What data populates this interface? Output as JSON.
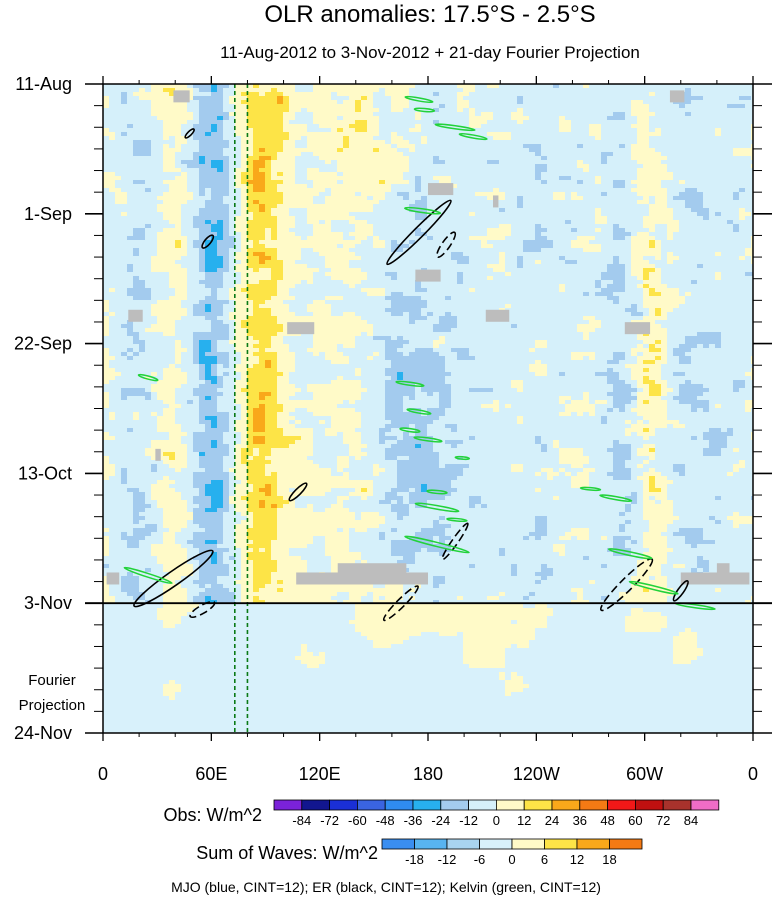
{
  "chart_data": {
    "type": "heatmap",
    "title": "OLR anomalies: 17.5°S - 2.5°S",
    "subtitle": "11-Aug-2012 to 3-Nov-2012 + 21-day Fourier Projection",
    "x_ticks": [
      {
        "label": "0",
        "lon": 0
      },
      {
        "label": "60E",
        "lon": 60
      },
      {
        "label": "120E",
        "lon": 120
      },
      {
        "label": "180",
        "lon": 180
      },
      {
        "label": "120W",
        "lon": 240
      },
      {
        "label": "60W",
        "lon": 300
      },
      {
        "label": "0",
        "lon": 360
      }
    ],
    "xlim": [
      0,
      360
    ],
    "y_ticks": [
      {
        "label": "11-Aug",
        "day": 0
      },
      {
        "label": "1-Sep",
        "day": 21
      },
      {
        "label": "22-Sep",
        "day": 42
      },
      {
        "label": "13-Oct",
        "day": 63
      },
      {
        "label": "3-Nov",
        "day": 84
      },
      {
        "label": "24-Nov",
        "day": 105
      }
    ],
    "ylim": [
      0,
      105
    ],
    "forecast_start_day": 84,
    "projection_label": [
      "Fourier",
      "Projection"
    ],
    "reference_lons": [
      73,
      80
    ],
    "obs_legend": {
      "label": "Obs: W/m^2",
      "levels": [
        -84,
        -72,
        -60,
        -48,
        -36,
        -24,
        -12,
        0,
        12,
        24,
        36,
        48,
        60,
        72,
        84
      ],
      "colors": [
        "#7b22d9",
        "#12168f",
        "#1a2fd6",
        "#3a64e0",
        "#2f8cf0",
        "#27b0ee",
        "#a3cbee",
        "#d5f0fa",
        "#fffac8",
        "#fde447",
        "#f9a81a",
        "#f47a14",
        "#f21818",
        "#c01010",
        "#a8322c",
        "#f06cc6"
      ]
    },
    "waves_legend": {
      "label": "Sum of Waves: W/m^2",
      "levels": [
        -18,
        -12,
        -6,
        0,
        6,
        12,
        18
      ],
      "colors": [
        "#3a8ef0",
        "#58b4f0",
        "#a9d4f0",
        "#d8f1fb",
        "#fffac8",
        "#fde447",
        "#f9a81a",
        "#f47a14"
      ]
    },
    "contour_note": "MJO (blue, CINT=12); ER (black, CINT=12); Kelvin (green, CINT=12)",
    "er_contours": [
      {
        "lon": 175,
        "day": 24,
        "a": 45,
        "b": 5,
        "angle": -45,
        "dashed": false
      },
      {
        "lon": 190,
        "day": 26,
        "a": 15,
        "b": 4,
        "angle": -55,
        "dashed": true
      },
      {
        "lon": 58,
        "day": 25.5,
        "a": 8,
        "b": 3,
        "angle": -50,
        "dashed": false
      },
      {
        "lon": 48,
        "day": 8,
        "a": 6,
        "b": 2,
        "angle": -45,
        "dashed": false
      },
      {
        "lon": 39,
        "day": 80,
        "a": 48,
        "b": 7,
        "angle": -35,
        "dashed": false
      },
      {
        "lon": 55,
        "day": 85,
        "a": 14,
        "b": 4,
        "angle": -30,
        "dashed": true
      },
      {
        "lon": 108,
        "day": 66,
        "a": 12,
        "b": 3,
        "angle": -45,
        "dashed": false
      },
      {
        "lon": 195,
        "day": 74,
        "a": 22,
        "b": 3,
        "angle": -55,
        "dashed": true
      },
      {
        "lon": 165,
        "day": 84,
        "a": 24,
        "b": 4,
        "angle": -45,
        "dashed": true
      },
      {
        "lon": 290,
        "day": 81,
        "a": 36,
        "b": 6,
        "angle": -45,
        "dashed": true
      },
      {
        "lon": 320,
        "day": 82,
        "a": 12,
        "b": 3,
        "angle": -55,
        "dashed": false
      }
    ],
    "kelvin_contours": [
      {
        "lon": 175,
        "day": 2.5,
        "a": 14,
        "b": 1.5,
        "angle": 10
      },
      {
        "lon": 178,
        "day": 4.2,
        "a": 10,
        "b": 1.5,
        "angle": 5
      },
      {
        "lon": 195,
        "day": 7,
        "a": 20,
        "b": 1.5,
        "angle": 8
      },
      {
        "lon": 205,
        "day": 8.5,
        "a": 14,
        "b": 1.5,
        "angle": 10
      },
      {
        "lon": 177,
        "day": 20.5,
        "a": 18,
        "b": 1.8,
        "angle": 8
      },
      {
        "lon": 25,
        "day": 47.5,
        "a": 10,
        "b": 1.5,
        "angle": 15
      },
      {
        "lon": 170,
        "day": 48.5,
        "a": 14,
        "b": 1.5,
        "angle": 8
      },
      {
        "lon": 175,
        "day": 53,
        "a": 12,
        "b": 1.5,
        "angle": 10
      },
      {
        "lon": 170,
        "day": 56,
        "a": 10,
        "b": 1.5,
        "angle": 8
      },
      {
        "lon": 180,
        "day": 57.5,
        "a": 14,
        "b": 1.5,
        "angle": 8
      },
      {
        "lon": 199,
        "day": 60.5,
        "a": 7,
        "b": 1.2,
        "angle": 5
      },
      {
        "lon": 185,
        "day": 66,
        "a": 10,
        "b": 1.5,
        "angle": 5
      },
      {
        "lon": 185,
        "day": 68.5,
        "a": 22,
        "b": 1.8,
        "angle": 10
      },
      {
        "lon": 196,
        "day": 70.5,
        "a": 10,
        "b": 1.2,
        "angle": 5
      },
      {
        "lon": 185,
        "day": 74.5,
        "a": 33,
        "b": 2,
        "angle": 14
      },
      {
        "lon": 25,
        "day": 79.5,
        "a": 25,
        "b": 1.8,
        "angle": 18
      },
      {
        "lon": 270,
        "day": 65.5,
        "a": 10,
        "b": 1.2,
        "angle": 5
      },
      {
        "lon": 284,
        "day": 67,
        "a": 16,
        "b": 1.5,
        "angle": 10
      },
      {
        "lon": 292,
        "day": 76,
        "a": 22,
        "b": 1.8,
        "angle": 12
      },
      {
        "lon": 305,
        "day": 81.5,
        "a": 25,
        "b": 1.8,
        "angle": 14
      },
      {
        "lon": 328,
        "day": 84.5,
        "a": 20,
        "b": 1.5,
        "angle": 8
      }
    ],
    "missing_bars": [
      {
        "lon1": 39,
        "lon2": 48,
        "day": 2
      },
      {
        "lon1": 314,
        "lon2": 322,
        "day": 2
      },
      {
        "lon1": 180,
        "lon2": 194,
        "day": 17
      },
      {
        "lon1": 216,
        "lon2": 219,
        "day": 19
      },
      {
        "lon1": 173,
        "lon2": 187,
        "day": 31
      },
      {
        "lon1": 14,
        "lon2": 22,
        "day": 37.5
      },
      {
        "lon1": 102,
        "lon2": 117,
        "day": 39.5
      },
      {
        "lon1": 212,
        "lon2": 225,
        "day": 37.5
      },
      {
        "lon1": 289,
        "lon2": 303,
        "day": 39.5
      },
      {
        "lon1": 29,
        "lon2": 32,
        "day": 60
      },
      {
        "lon1": 2,
        "lon2": 9,
        "day": 80
      },
      {
        "lon1": 107,
        "lon2": 180,
        "day": 80
      },
      {
        "lon1": 130,
        "lon2": 168,
        "day": 78.5
      },
      {
        "lon1": 320,
        "lon2": 358,
        "day": 80
      },
      {
        "lon1": 340,
        "lon2": 347,
        "day": 78.5
      }
    ]
  }
}
